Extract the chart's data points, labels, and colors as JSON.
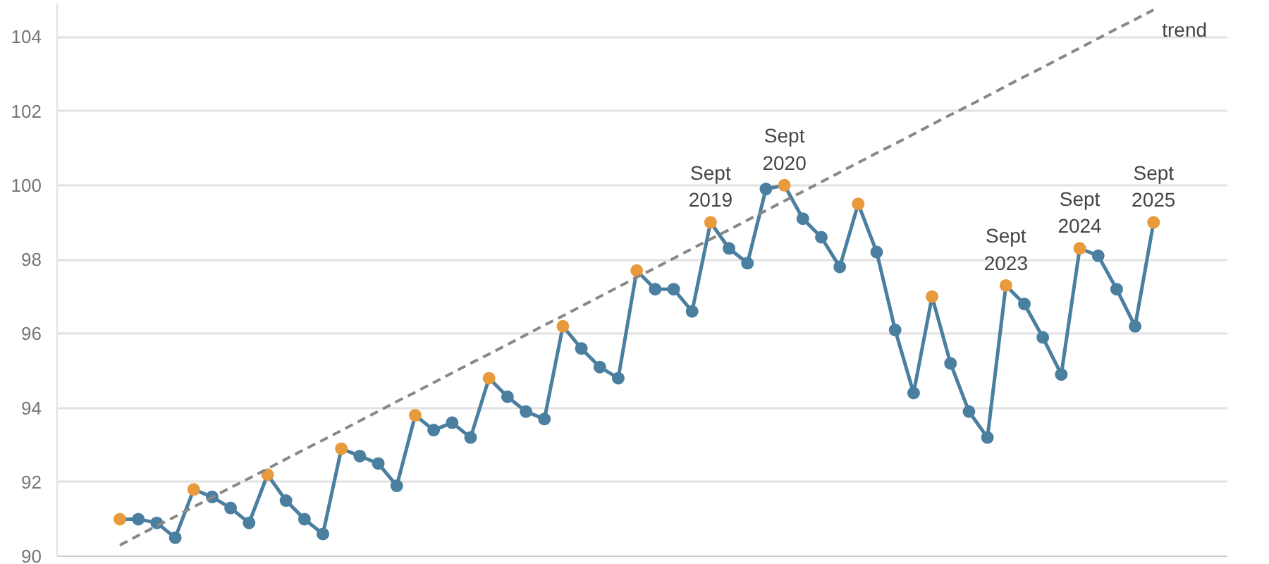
{
  "chart_data": {
    "type": "line",
    "categories": [
      null,
      null,
      null,
      null,
      null,
      null,
      null,
      null,
      null,
      null,
      null,
      null,
      null,
      null,
      null,
      null,
      null,
      null,
      null,
      null,
      null,
      null,
      null,
      null,
      null,
      null,
      null,
      null,
      null,
      null,
      null,
      null,
      null,
      null,
      null,
      null,
      null,
      null,
      null,
      null,
      null,
      null,
      null,
      null,
      null,
      null,
      null,
      null,
      null,
      null,
      null,
      null,
      null,
      null,
      null,
      null,
      null
    ],
    "series": [
      {
        "color": "#4a7fa0",
        "values": [
          91.0,
          91.0,
          90.9,
          90.5,
          91.8,
          91.6,
          91.3,
          90.9,
          92.2,
          91.5,
          91.0,
          90.6,
          92.9,
          92.7,
          92.5,
          91.9,
          93.8,
          93.4,
          93.6,
          93.2,
          94.8,
          94.3,
          93.9,
          93.7,
          96.2,
          95.6,
          95.1,
          94.8,
          97.7,
          97.2,
          97.2,
          96.6,
          99.0,
          98.3,
          97.9,
          99.9,
          100.0,
          99.1,
          98.6,
          97.8,
          99.5,
          98.2,
          96.1,
          94.4,
          97.0,
          95.2,
          93.9,
          93.2,
          97.3,
          96.8,
          95.9,
          94.9,
          98.3,
          98.1,
          97.2,
          96.2,
          99.0
        ],
        "colors": [
          "#e89a3c",
          "#4a7fa0",
          "#4a7fa0",
          "#4a7fa0",
          "#e89a3c",
          "#4a7fa0",
          "#4a7fa0",
          "#4a7fa0",
          "#e89a3c",
          "#4a7fa0",
          "#4a7fa0",
          "#4a7fa0",
          "#e89a3c",
          "#4a7fa0",
          "#4a7fa0",
          "#4a7fa0",
          "#e89a3c",
          "#4a7fa0",
          "#4a7fa0",
          "#4a7fa0",
          "#e89a3c",
          "#4a7fa0",
          "#4a7fa0",
          "#4a7fa0",
          "#e89a3c",
          "#4a7fa0",
          "#4a7fa0",
          "#4a7fa0",
          "#e89a3c",
          "#4a7fa0",
          "#4a7fa0",
          "#4a7fa0",
          "#e89a3c",
          "#4a7fa0",
          "#4a7fa0",
          "#4a7fa0",
          "#e89a3c",
          "#4a7fa0",
          "#4a7fa0",
          "#4a7fa0",
          "#e89a3c",
          "#4a7fa0",
          "#4a7fa0",
          "#4a7fa0",
          "#e89a3c",
          "#4a7fa0",
          "#4a7fa0",
          "#4a7fa0",
          "#e89a3c",
          "#4a7fa0",
          "#4a7fa0",
          "#4a7fa0",
          "#e89a3c",
          "#4a7fa0",
          "#4a7fa0",
          "#4a7fa0",
          "#e89a3c"
        ],
        "marker": "circle",
        "value_labels": [
          null,
          null,
          null,
          null,
          null,
          null,
          null,
          null,
          null,
          null,
          null,
          null,
          null,
          null,
          null,
          null,
          null,
          null,
          null,
          null,
          null,
          null,
          null,
          null,
          null,
          null,
          null,
          null,
          null,
          null,
          null,
          null,
          "Sept 2019",
          null,
          null,
          null,
          "Sept 2020",
          null,
          null,
          null,
          null,
          null,
          null,
          null,
          null,
          null,
          null,
          null,
          "Sept 2023",
          null,
          null,
          null,
          "Sept 2024",
          null,
          null,
          null,
          "Sept 2025"
        ]
      },
      {
        "name": "trend",
        "color": "#888888",
        "line_style": "dashed",
        "marker": "none",
        "values": [
          90.3,
          90.56,
          90.82,
          91.07,
          91.33,
          91.59,
          91.85,
          92.1,
          92.36,
          92.62,
          92.88,
          93.13,
          93.39,
          93.65,
          93.91,
          94.17,
          94.42,
          94.68,
          94.94,
          95.2,
          95.45,
          95.71,
          95.97,
          96.23,
          96.48,
          96.74,
          97.0,
          97.26,
          97.52,
          97.77,
          98.03,
          98.29,
          98.55,
          98.8,
          99.06,
          99.32,
          99.58,
          99.83,
          100.09,
          100.35,
          100.61,
          100.87,
          101.12,
          101.38,
          101.64,
          101.9,
          102.15,
          102.41,
          102.67,
          102.93,
          103.18,
          103.44,
          103.7,
          103.96,
          104.22,
          104.47,
          104.73
        ]
      }
    ],
    "ylim": [
      90,
      104.9
    ],
    "yticks": [
      90,
      92,
      94,
      96,
      98,
      100,
      102,
      104
    ],
    "grid": "y",
    "tick_labels": "y"
  }
}
